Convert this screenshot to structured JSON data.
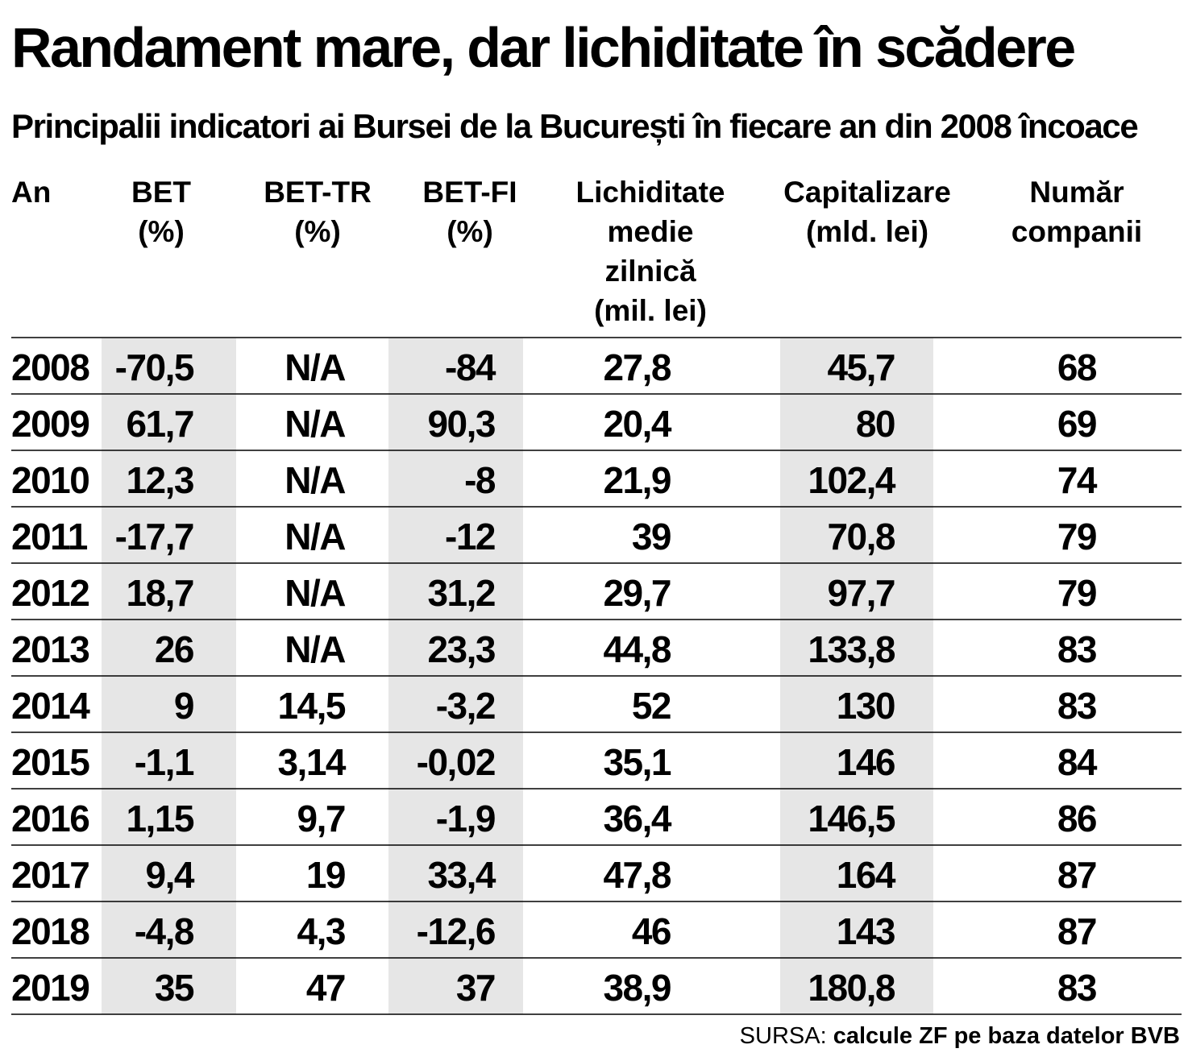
{
  "title": "Randament mare, dar lichiditate în scădere",
  "subtitle": "Principalii indicatori ai Bursei de la București în fiecare an din 2008 încoace",
  "source": {
    "label": "SURSA:",
    "text": "calcule ZF pe baza datelor BVB"
  },
  "chart_data": {
    "type": "table",
    "shaded_fill": "#e6e6e6",
    "rule_color": "#000000",
    "columns": [
      {
        "key": "an",
        "header": [
          "An"
        ]
      },
      {
        "key": "bet",
        "header": [
          "BET",
          "(%)"
        ]
      },
      {
        "key": "bet_tr",
        "header": [
          "BET-TR",
          "(%)"
        ]
      },
      {
        "key": "bet_fi",
        "header": [
          "BET-FI",
          "(%)"
        ]
      },
      {
        "key": "lichiditate",
        "header": [
          "Lichiditate",
          "medie",
          "zilnică",
          "(mil. lei)"
        ]
      },
      {
        "key": "capitalizare",
        "header": [
          "Capitalizare",
          "(mld. lei)"
        ]
      },
      {
        "key": "companii",
        "header": [
          "Număr",
          "companii"
        ]
      }
    ],
    "rows": [
      [
        "2008",
        "-70,5",
        "N/A",
        "-84",
        "27,8",
        "45,7",
        "68"
      ],
      [
        "2009",
        "61,7",
        "N/A",
        "90,3",
        "20,4",
        "80",
        "69"
      ],
      [
        "2010",
        "12,3",
        "N/A",
        "-8",
        "21,9",
        "102,4",
        "74"
      ],
      [
        "2011",
        "-17,7",
        "N/A",
        "-12",
        "39",
        "70,8",
        "79"
      ],
      [
        "2012",
        "18,7",
        "N/A",
        "31,2",
        "29,7",
        "97,7",
        "79"
      ],
      [
        "2013",
        "26",
        "N/A",
        "23,3",
        "44,8",
        "133,8",
        "83"
      ],
      [
        "2014",
        "9",
        "14,5",
        "-3,2",
        "52",
        "130",
        "83"
      ],
      [
        "2015",
        "-1,1",
        "3,14",
        "-0,02",
        "35,1",
        "146",
        "84"
      ],
      [
        "2016",
        "1,15",
        "9,7",
        "-1,9",
        "36,4",
        "146,5",
        "86"
      ],
      [
        "2017",
        "9,4",
        "19",
        "33,4",
        "47,8",
        "164",
        "87"
      ],
      [
        "2018",
        "-4,8",
        "4,3",
        "-12,6",
        "46",
        "143",
        "87"
      ],
      [
        "2019",
        "35",
        "47",
        "37",
        "38,9",
        "180,8",
        "83"
      ]
    ]
  }
}
